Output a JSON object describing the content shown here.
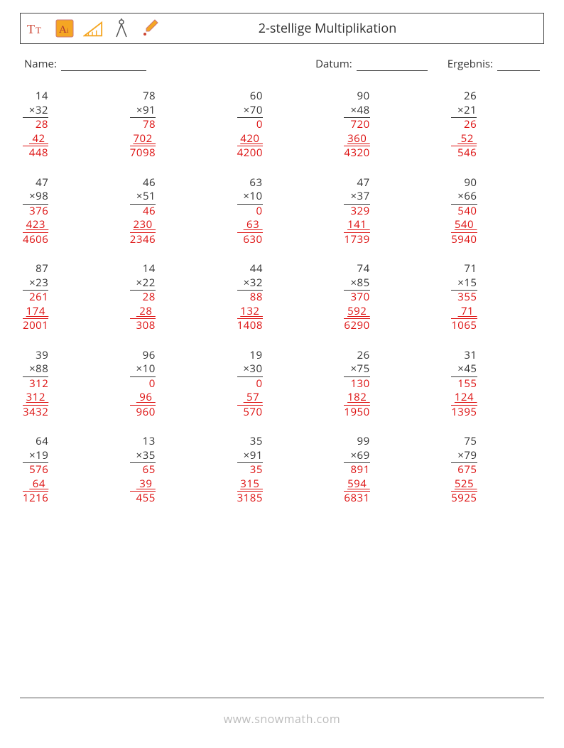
{
  "header": {
    "title": "2-stellige Multiplikation"
  },
  "labels": {
    "name": "Name:",
    "date": "Datum:",
    "result": "Ergebnis:"
  },
  "footer": {
    "watermark": "www.snowmath.com"
  },
  "colors": {
    "answer": "#dd1111",
    "text": "#333333"
  },
  "problems": [
    {
      "a": "14",
      "b": "32",
      "p1": "28",
      "p2": "42",
      "ans": "448"
    },
    {
      "a": "78",
      "b": "91",
      "p1": "78",
      "p2": "702",
      "ans": "7098"
    },
    {
      "a": "60",
      "b": "70",
      "p1": "0",
      "p2": "420",
      "ans": "4200"
    },
    {
      "a": "90",
      "b": "48",
      "p1": "720",
      "p2": "360",
      "ans": "4320"
    },
    {
      "a": "26",
      "b": "21",
      "p1": "26",
      "p2": "52",
      "ans": "546"
    },
    {
      "a": "47",
      "b": "98",
      "p1": "376",
      "p2": "423",
      "ans": "4606"
    },
    {
      "a": "46",
      "b": "51",
      "p1": "46",
      "p2": "230",
      "ans": "2346"
    },
    {
      "a": "63",
      "b": "10",
      "p1": "0",
      "p2": "63",
      "ans": "630"
    },
    {
      "a": "47",
      "b": "37",
      "p1": "329",
      "p2": "141",
      "ans": "1739"
    },
    {
      "a": "90",
      "b": "66",
      "p1": "540",
      "p2": "540",
      "ans": "5940"
    },
    {
      "a": "87",
      "b": "23",
      "p1": "261",
      "p2": "174",
      "ans": "2001"
    },
    {
      "a": "14",
      "b": "22",
      "p1": "28",
      "p2": "28",
      "ans": "308"
    },
    {
      "a": "44",
      "b": "32",
      "p1": "88",
      "p2": "132",
      "ans": "1408"
    },
    {
      "a": "74",
      "b": "85",
      "p1": "370",
      "p2": "592",
      "ans": "6290"
    },
    {
      "a": "71",
      "b": "15",
      "p1": "355",
      "p2": "71",
      "ans": "1065"
    },
    {
      "a": "39",
      "b": "88",
      "p1": "312",
      "p2": "312",
      "ans": "3432"
    },
    {
      "a": "96",
      "b": "10",
      "p1": "0",
      "p2": "96",
      "ans": "960"
    },
    {
      "a": "19",
      "b": "30",
      "p1": "0",
      "p2": "57",
      "ans": "570"
    },
    {
      "a": "26",
      "b": "75",
      "p1": "130",
      "p2": "182",
      "ans": "1950"
    },
    {
      "a": "31",
      "b": "45",
      "p1": "155",
      "p2": "124",
      "ans": "1395"
    },
    {
      "a": "64",
      "b": "19",
      "p1": "576",
      "p2": "64",
      "ans": "1216"
    },
    {
      "a": "13",
      "b": "35",
      "p1": "65",
      "p2": "39",
      "ans": "455"
    },
    {
      "a": "35",
      "b": "91",
      "p1": "35",
      "p2": "315",
      "ans": "3185"
    },
    {
      "a": "99",
      "b": "69",
      "p1": "891",
      "p2": "594",
      "ans": "6831"
    },
    {
      "a": "75",
      "b": "79",
      "p1": "675",
      "p2": "525",
      "ans": "5925"
    }
  ]
}
